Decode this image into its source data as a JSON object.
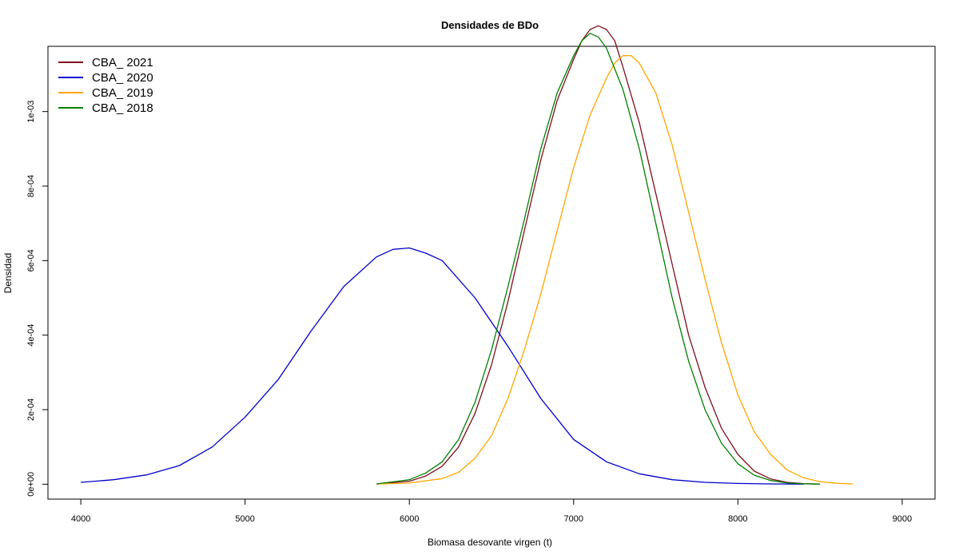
{
  "chart_data": {
    "type": "line",
    "title": "Densidades de BDo",
    "xlabel": "Biomasa desovante virgen (t)",
    "ylabel": "Densidad",
    "xlim": [
      3800,
      9200
    ],
    "ylim": [
      -4e-05,
      0.001175
    ],
    "xticks": [
      4000,
      5000,
      6000,
      7000,
      8000,
      9000
    ],
    "xtick_labels": [
      "4000",
      "5000",
      "6000",
      "7000",
      "8000",
      "9000"
    ],
    "yticks": [
      0,
      0.0002,
      0.0004,
      0.0006,
      0.0008,
      0.001
    ],
    "ytick_labels": [
      "0e+00",
      "2e-04",
      "4e-04",
      "6e-04",
      "8e-04",
      "1e-03"
    ],
    "grid": false,
    "legend_position": "top-left",
    "series": [
      {
        "name": "CBA_ 2021",
        "color": "#7f0f1f",
        "x": [
          5800,
          6000,
          6100,
          6200,
          6300,
          6400,
          6500,
          6600,
          6700,
          6800,
          6900,
          7000,
          7050,
          7100,
          7150,
          7200,
          7250,
          7300,
          7400,
          7500,
          7600,
          7700,
          7800,
          7900,
          8000,
          8100,
          8200,
          8300,
          8400,
          8500
        ],
        "y": [
          5e-07,
          8e-06,
          2.2e-05,
          4.8e-05,
          0.0001,
          0.00019,
          0.00032,
          0.00049,
          0.00068,
          0.00087,
          0.00103,
          0.00114,
          0.00119,
          0.00122,
          0.00123,
          0.00122,
          0.00119,
          0.00112,
          0.00097,
          0.00078,
          0.00059,
          0.0004,
          0.00026,
          0.00015,
          8e-05,
          3.5e-05,
          1.4e-05,
          5e-06,
          1.5e-06,
          3e-07
        ]
      },
      {
        "name": "CBA_ 2020",
        "color": "#0000cc",
        "x": [
          4000,
          4200,
          4400,
          4600,
          4800,
          5000,
          5200,
          5400,
          5600,
          5800,
          5900,
          6000,
          6100,
          6200,
          6400,
          6600,
          6800,
          7000,
          7200,
          7400,
          7600,
          7800,
          8000,
          8200,
          8400
        ],
        "y": [
          5e-06,
          1.2e-05,
          2.5e-05,
          5e-05,
          0.0001,
          0.00018,
          0.00028,
          0.00041,
          0.00053,
          0.00061,
          0.00063,
          0.000634,
          0.00062,
          0.0006,
          0.0005,
          0.00037,
          0.00023,
          0.00012,
          6e-05,
          2.8e-05,
          1.2e-05,
          5e-06,
          2e-06,
          7e-07,
          2e-07
        ]
      },
      {
        "name": "CBA_ 2019",
        "color": "#ffa500",
        "x": [
          5800,
          6000,
          6200,
          6300,
          6400,
          6500,
          6600,
          6700,
          6800,
          6900,
          7000,
          7100,
          7200,
          7250,
          7300,
          7350,
          7400,
          7500,
          7600,
          7700,
          7800,
          7900,
          8000,
          8100,
          8200,
          8300,
          8400,
          8500,
          8600,
          8700
        ],
        "y": [
          5e-07,
          3e-06,
          1.5e-05,
          3.2e-05,
          7e-05,
          0.00013,
          0.00023,
          0.00036,
          0.00051,
          0.00068,
          0.00085,
          0.00099,
          0.00109,
          0.00113,
          0.00115,
          0.00115,
          0.00113,
          0.00105,
          0.00091,
          0.00073,
          0.00055,
          0.00038,
          0.00024,
          0.00014,
          8e-05,
          3.8e-05,
          1.7e-05,
          7e-06,
          2.5e-06,
          8e-07
        ]
      },
      {
        "name": "CBA_ 2018",
        "color": "#008000",
        "x": [
          5800,
          6000,
          6100,
          6200,
          6300,
          6400,
          6500,
          6600,
          6700,
          6800,
          6900,
          7000,
          7050,
          7100,
          7150,
          7200,
          7300,
          7400,
          7500,
          7600,
          7700,
          7800,
          7900,
          8000,
          8100,
          8200,
          8300,
          8400,
          8500
        ],
        "y": [
          8e-07,
          1.2e-05,
          3e-05,
          6e-05,
          0.00012,
          0.00022,
          0.00036,
          0.00053,
          0.00071,
          0.0009,
          0.00105,
          0.00115,
          0.00119,
          0.00121,
          0.0012,
          0.00117,
          0.00106,
          0.0009,
          0.0007,
          0.0005,
          0.00033,
          0.0002,
          0.00011,
          5.5e-05,
          2.4e-05,
          1e-05,
          3.5e-06,
          1e-06,
          3e-07
        ]
      }
    ]
  }
}
